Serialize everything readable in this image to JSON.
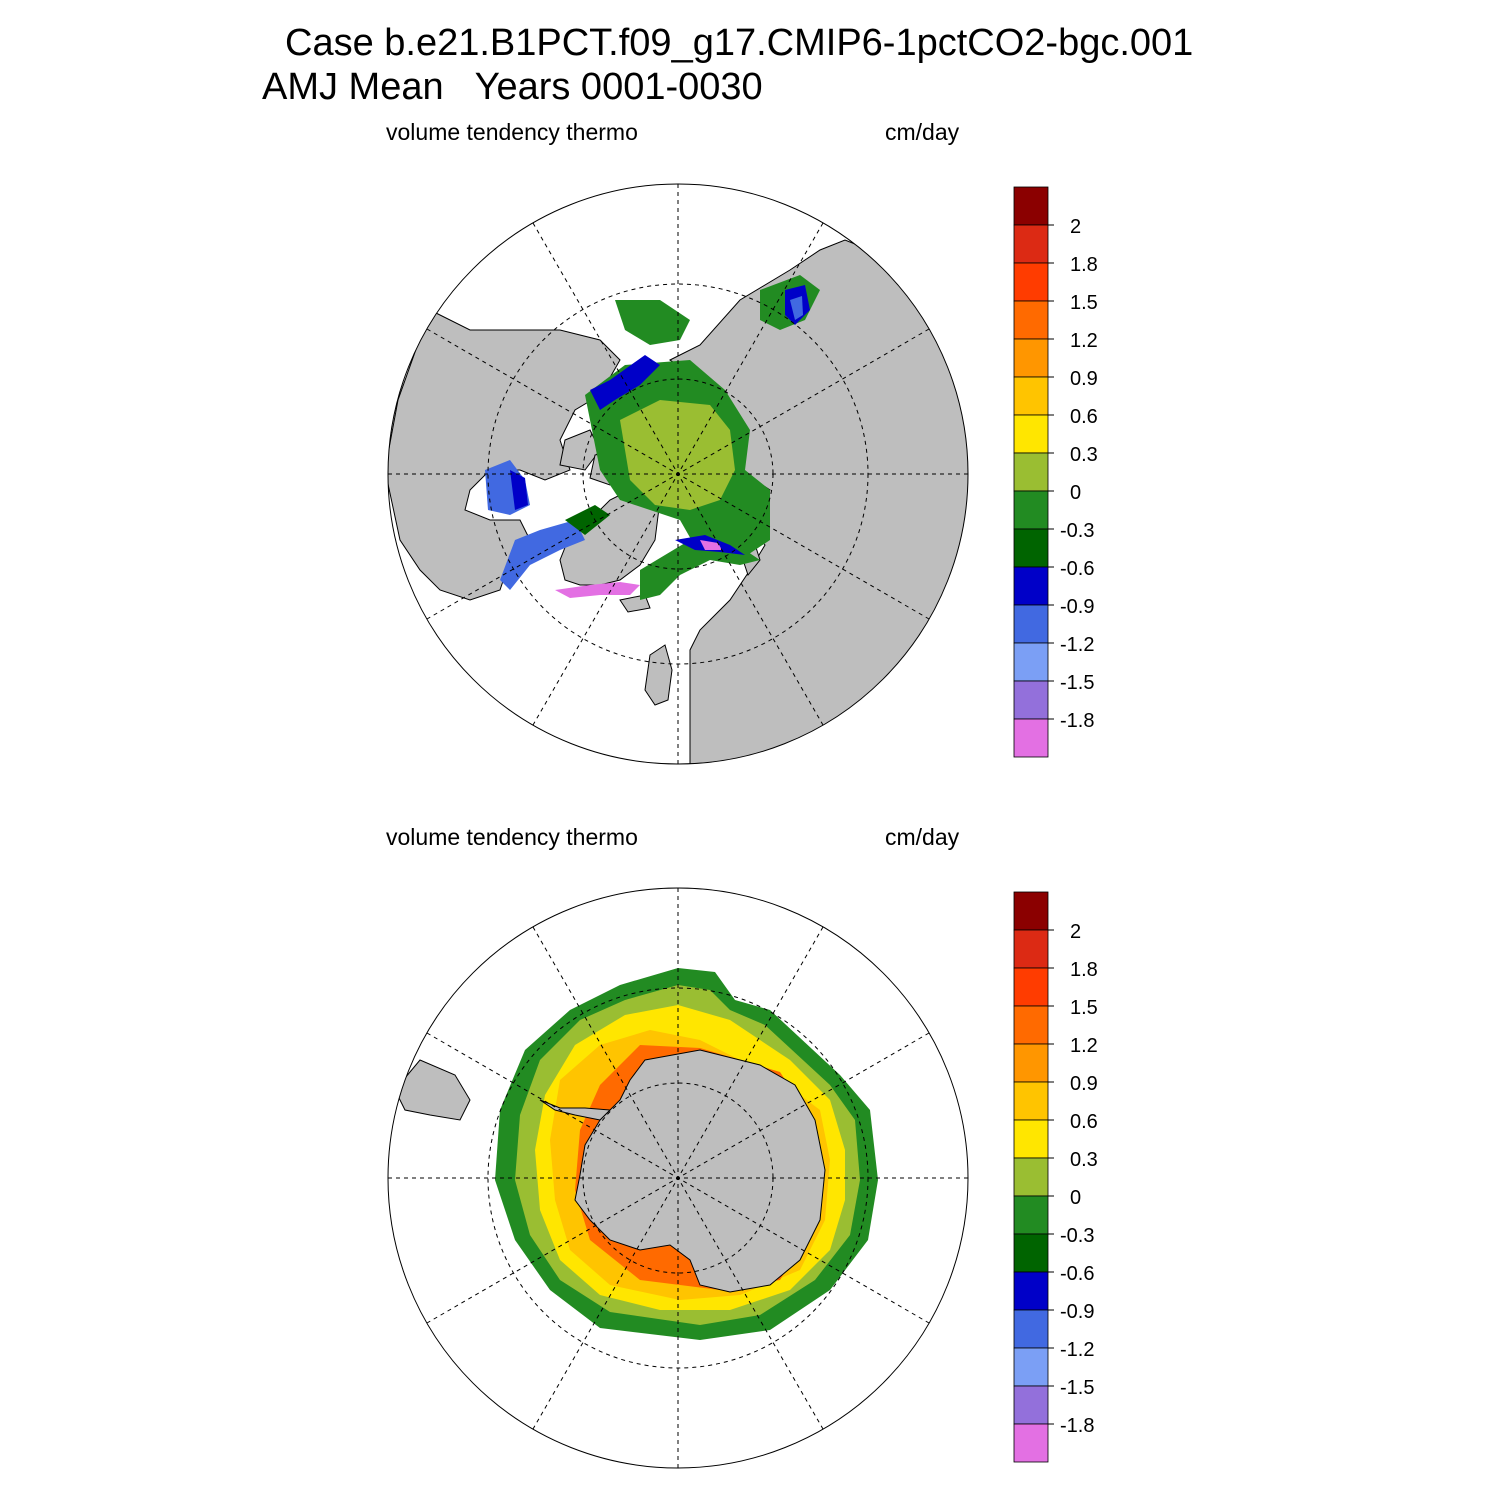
{
  "header": {
    "line1": "Case b.e21.B1PCT.f09_g17.CMIP6-1pctCO2-bgc.001",
    "line2": "AMJ Mean   Years 0001-0030"
  },
  "panels": [
    {
      "id": "north",
      "variable": "volume tendency thermo",
      "units": "cm/day",
      "hemisphere": "north"
    },
    {
      "id": "south",
      "variable": "volume tendency thermo",
      "units": "cm/day",
      "hemisphere": "south"
    }
  ],
  "colorbar": {
    "labels": [
      "2",
      "1.8",
      "1.5",
      "1.2",
      "0.9",
      "0.6",
      "0.3",
      "0",
      "-0.3",
      "-0.6",
      "-0.9",
      "-1.2",
      "-1.5",
      "-1.8"
    ],
    "colors": [
      "#8b0000",
      "#dc2a14",
      "#ff3c00",
      "#ff6a00",
      "#ff9600",
      "#ffc400",
      "#ffe600",
      "#9abe32",
      "#228b22",
      "#006400",
      "#0000c8",
      "#4169e1",
      "#7b9ff5",
      "#9370db",
      "#e370e3"
    ]
  },
  "colors": {
    "land": "#bebebe",
    "ocean": "#ffffff",
    "grid": "#000000"
  }
}
